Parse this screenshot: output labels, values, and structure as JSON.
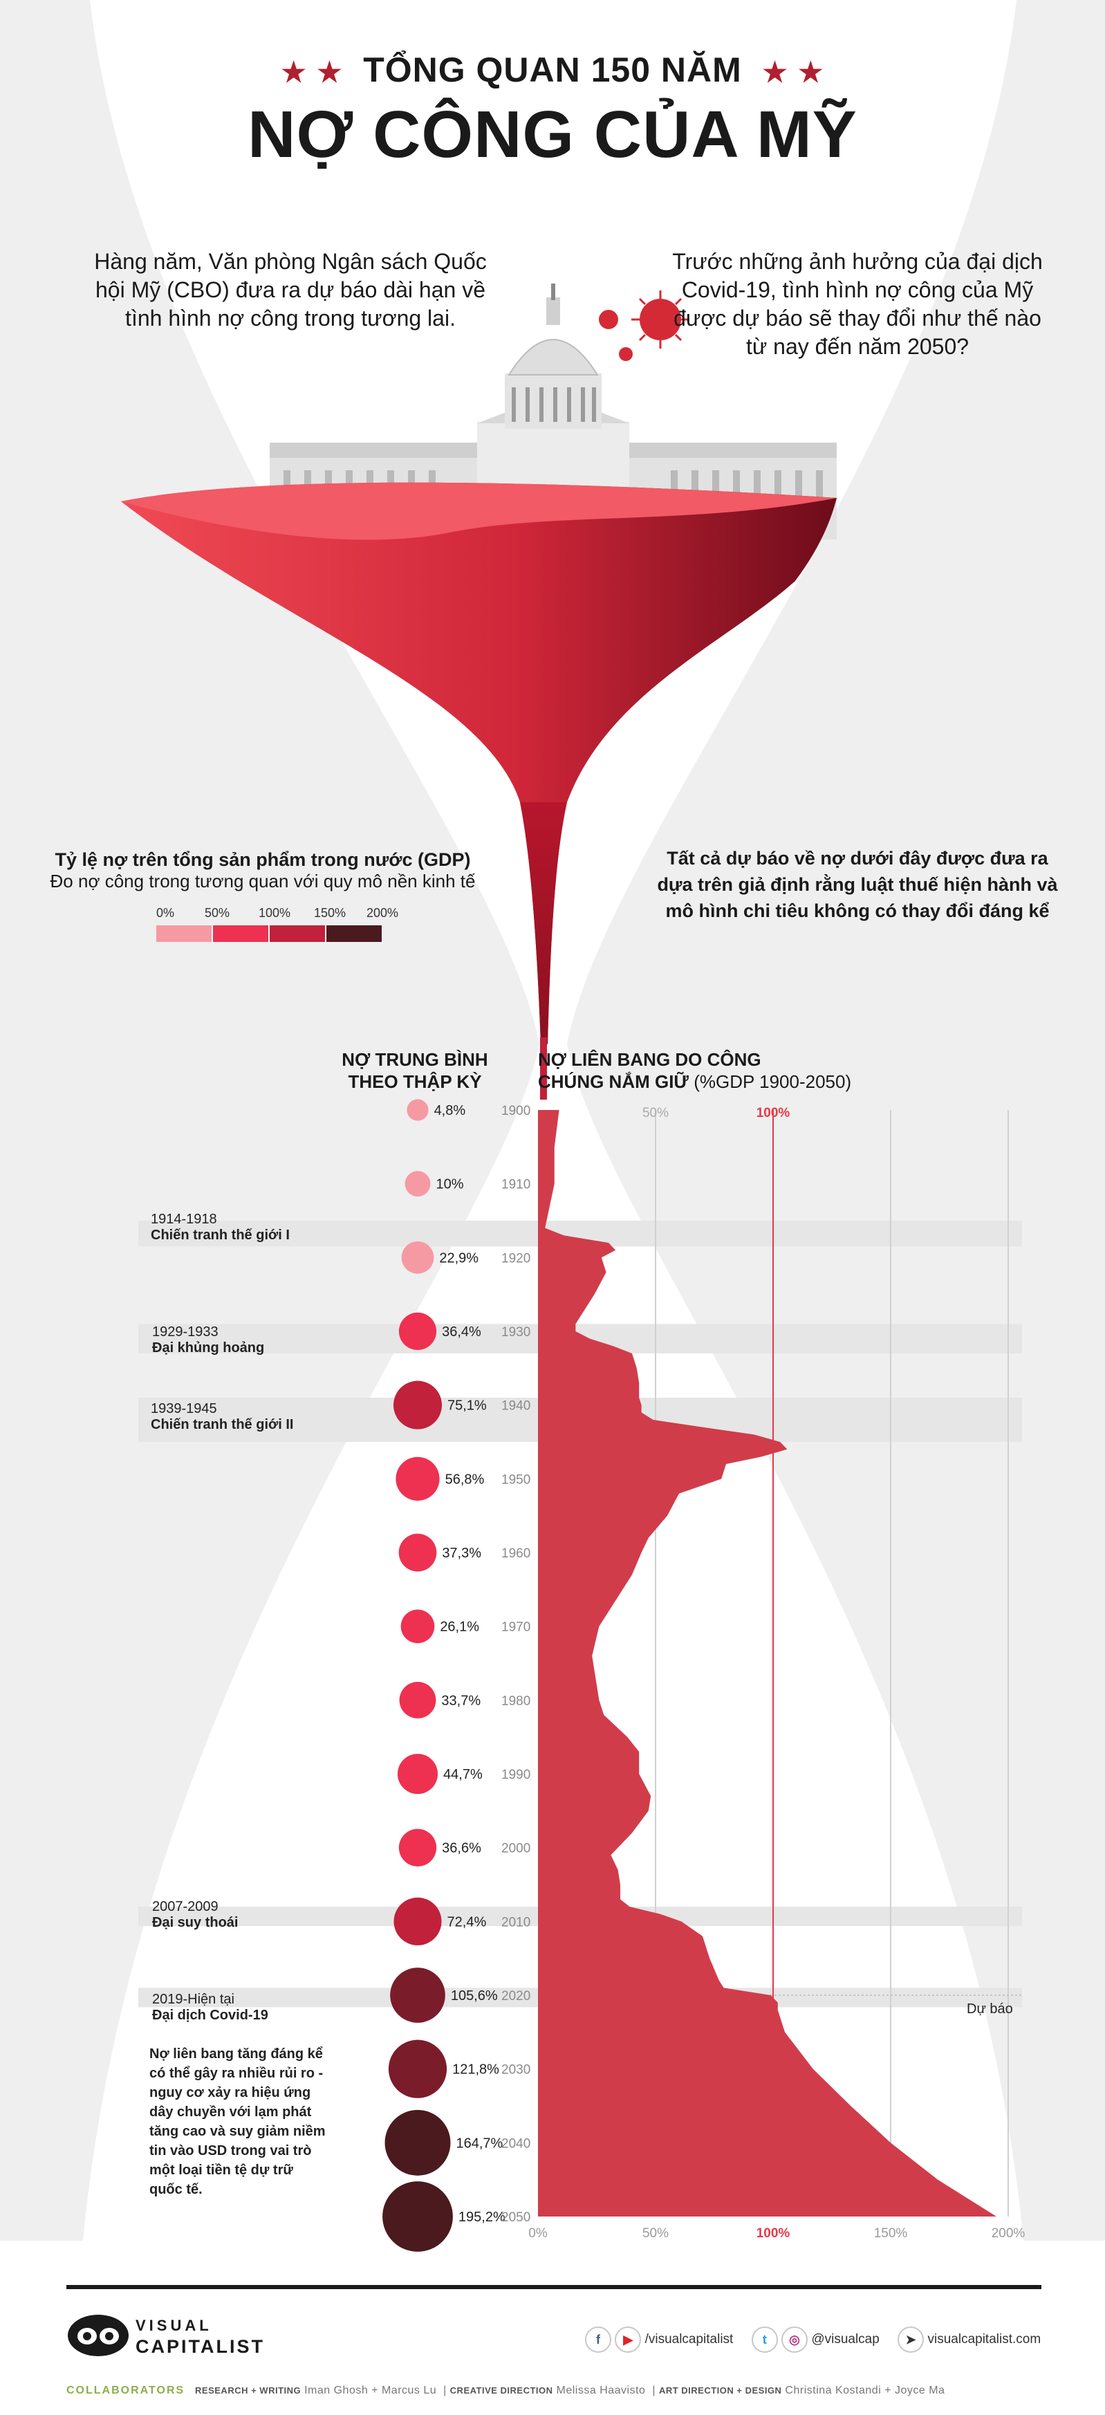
{
  "header": {
    "title_line1": "TỔNG QUAN 150 NĂM",
    "title_line2": "NỢ CÔNG CỦA MỸ"
  },
  "intro": {
    "left": "Hàng năm, Văn phòng Ngân sách Quốc hội Mỹ (CBO) đưa ra dự báo dài hạn về tình hình nợ công trong tương lai.",
    "right": "Trước những ảnh hưởng của đại dịch Covid-19, tình hình nợ công của Mỹ được dự báo sẽ thay đổi như thế nào từ nay đến năm 2050?"
  },
  "legend": {
    "title": "Tỷ lệ nợ trên tổng sản phẩm trong nước (GDP)",
    "subtitle": "Đo nợ công trong tương quan với quy mô nền kinh tế",
    "scale": [
      {
        "label": "0%",
        "color": "#f59aa3"
      },
      {
        "label": "50%",
        "color": "#ee3150"
      },
      {
        "label": "100%",
        "color": "#c1213a"
      },
      {
        "label": "150%",
        "color": "#7b1c2a"
      },
      {
        "label": "200%",
        "color": "#4b1a1f"
      }
    ]
  },
  "assumption_note": "Tất cả dự báo về nợ dưới đây được đưa ra dựa trên giả định rằng luật thuế hiện hành và mô hình chi tiêu không có thay đổi đáng kể",
  "columns": {
    "decade_head_1": "NỢ TRUNG BÌNH",
    "decade_head_2": "THEO THẬP KỲ",
    "chart_head_1": "NỢ LIÊN BANG DO CÔNG",
    "chart_head_2_bold": "CHÚNG NẮM GIỮ",
    "chart_head_2_rest": " (%GDP 1900-2050)"
  },
  "chart_data": [
    {
      "type": "bar",
      "title": "NỢ TRUNG BÌNH THEO THẬP KỲ",
      "categories": [
        "1900",
        "1910",
        "1920",
        "1930",
        "1940",
        "1950",
        "1960",
        "1970",
        "1980",
        "1990",
        "2000",
        "2010",
        "2020",
        "2030",
        "2040",
        "2050"
      ],
      "values": [
        4.8,
        10,
        22.9,
        36.4,
        75.1,
        56.8,
        37.3,
        26.1,
        33.7,
        44.7,
        36.6,
        72.4,
        105.6,
        121.8,
        164.7,
        195.2
      ],
      "labels": [
        "4,8%",
        "10%",
        "22,9%",
        "36,4%",
        "75,1%",
        "56,8%",
        "37,3%",
        "26,1%",
        "33,7%",
        "44,7%",
        "36,6%",
        "72,4%",
        "105,6%",
        "121,8%",
        "164,7%",
        "195,2%"
      ]
    },
    {
      "type": "area",
      "title": "NỢ LIÊN BANG DO CÔNG CHÚNG NẮM GIỮ (%GDP 1900-2050)",
      "x": [
        1900,
        1905,
        1910,
        1916,
        1917,
        1918,
        1919,
        1920,
        1922,
        1925,
        1927,
        1929,
        1930,
        1931,
        1932,
        1933,
        1935,
        1937,
        1939,
        1940,
        1941,
        1942,
        1943,
        1944,
        1945,
        1946,
        1947,
        1948,
        1950,
        1952,
        1955,
        1958,
        1960,
        1963,
        1966,
        1970,
        1974,
        1978,
        1980,
        1982,
        1985,
        1987,
        1990,
        1993,
        1995,
        1998,
        2000,
        2001,
        2003,
        2005,
        2007,
        2008,
        2009,
        2010,
        2012,
        2015,
        2018,
        2019,
        2020,
        2021,
        2022,
        2025,
        2030,
        2035,
        2040,
        2045,
        2050
      ],
      "y": [
        9,
        7,
        7,
        3,
        11,
        30,
        33,
        27,
        29,
        24,
        20,
        16,
        16,
        22,
        32,
        40,
        42,
        43,
        43,
        44,
        44,
        49,
        70,
        92,
        103,
        106,
        95,
        80,
        78,
        60,
        55,
        47,
        44,
        40,
        34,
        26,
        23,
        25,
        26,
        28,
        38,
        43,
        43,
        48,
        47,
        40,
        34,
        31,
        34,
        35,
        35,
        39,
        52,
        61,
        70,
        73,
        77,
        79,
        99,
        102,
        102,
        105,
        117,
        133,
        150,
        170,
        195
      ],
      "xlim": [
        1900,
        2050
      ],
      "ylim": [
        0,
        200
      ],
      "x_ticks": [
        "0%",
        "50%",
        "100%",
        "150%",
        "200%"
      ],
      "top_ticks": [
        "50%",
        "100%"
      ],
      "forecast_label": "Dự báo"
    }
  ],
  "events": [
    {
      "date": "1914-1918",
      "name": "Chiến tranh thế giới I"
    },
    {
      "date": "1929-1933",
      "name": "Đại khủng hoảng"
    },
    {
      "date": "1939-1945",
      "name": "Chiến tranh thế giới II"
    },
    {
      "date": "2007-2009",
      "name": "Đại suy thoái"
    },
    {
      "date": "2019-Hiện tại",
      "name": "Đại dịch Covid-19"
    }
  ],
  "covid_note": "Nợ liên bang tăng đáng kể có thể gây ra nhiều rủi ro - nguy cơ xảy ra hiệu ứng dây chuyền với lạm phát tăng cao và suy giảm niềm tin vào USD trong vai trò một loại tiền tệ dự trữ quốc tế.",
  "footer": {
    "brand_line1": "VISUAL",
    "brand_line2": "CAPITALIST",
    "social_1": "/visualcapitalist",
    "social_2": "@visualcap",
    "social_3": "visualcapitalist.com",
    "collaborators_label": "COLLABORATORS",
    "research_label": "RESEARCH + WRITING",
    "research_names": "Iman Ghosh + Marcus Lu",
    "creative_label": "CREATIVE DIRECTION",
    "creative_names": "Melissa Haavisto",
    "art_label": "ART DIRECTION + DESIGN",
    "art_names": "Christina Kostandi + Joyce Ma"
  },
  "colors": {
    "area": "#d13c4b",
    "title_star": "#b0202e",
    "funnel_light": "#ef4552",
    "funnel_dark": "#7a0e1e",
    "accent_100": "#e83848"
  }
}
